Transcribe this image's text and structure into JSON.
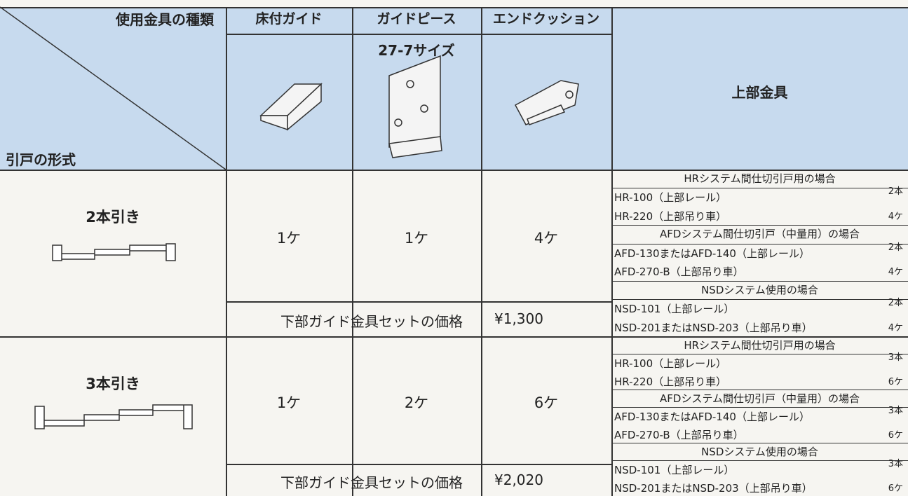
{
  "header": {
    "corner_top": "使用金具の種類",
    "corner_bottom": "引戸の形式",
    "columns": [
      "床付ガイド",
      "ガイドピース",
      "エンドクッション"
    ],
    "guide_piece_size": "27-7サイズ",
    "upper": "上部金具"
  },
  "rows": [
    {
      "label": "2本引き",
      "quantities": [
        "1ケ",
        "1ケ",
        "4ケ"
      ],
      "price_label": "下部ガイド金具セットの価格",
      "price": "¥1,300",
      "upper": [
        {
          "title": "HRシステム間仕切引戸用の場合",
          "items": [
            {
              "name": "HR-100（上部レール）",
              "qty": "2本"
            },
            {
              "name": "HR-220（上部吊り車）",
              "qty": "4ケ"
            }
          ]
        },
        {
          "title": "AFDシステム間仕切引戸（中量用）の場合",
          "items": [
            {
              "name": "AFD-130またはAFD-140（上部レール）",
              "qty": "2本"
            },
            {
              "name": "AFD-270-B（上部吊り車）",
              "qty": "4ケ"
            }
          ]
        },
        {
          "title": "NSDシステム使用の場合",
          "items": [
            {
              "name": "NSD-101（上部レール）",
              "qty": "2本"
            },
            {
              "name": "NSD-201またはNSD-203（上部吊り車）",
              "qty": "4ケ"
            }
          ]
        }
      ]
    },
    {
      "label": "3本引き",
      "quantities": [
        "1ケ",
        "2ケ",
        "6ケ"
      ],
      "price_label": "下部ガイド金具セットの価格",
      "price": "¥2,020",
      "upper": [
        {
          "title": "HRシステム間仕切引戸用の場合",
          "items": [
            {
              "name": "HR-100（上部レール）",
              "qty": "3本"
            },
            {
              "name": "HR-220（上部吊り車）",
              "qty": "6ケ"
            }
          ]
        },
        {
          "title": "AFDシステム間仕切引戸（中量用）の場合",
          "items": [
            {
              "name": "AFD-130またはAFD-140（上部レール）",
              "qty": "3本"
            },
            {
              "name": "AFD-270-B（上部吊り車）",
              "qty": "6ケ"
            }
          ]
        },
        {
          "title": "NSDシステム使用の場合",
          "items": [
            {
              "name": "NSD-101（上部レール）",
              "qty": "3本"
            },
            {
              "name": "NSD-201またはNSD-203（上部吊り車）",
              "qty": "6ケ"
            }
          ]
        }
      ]
    }
  ]
}
